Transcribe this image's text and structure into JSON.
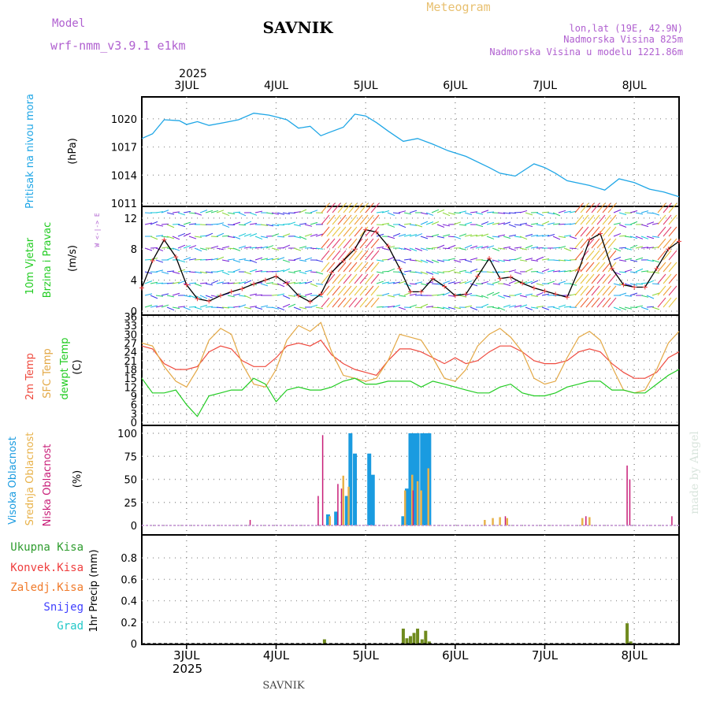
{
  "header": {
    "model_label": "Model",
    "model_name": "wrf-nmm_v3.9.1 e1km",
    "station": "SAVNIK",
    "product": "Meteogram",
    "lonlat": "lon,lat (19E, 42.9N)",
    "elevation": "Nadmorska Visina 825m",
    "model_elevation": "Nadmorska Visina u modelu 1221.86m",
    "footer_station": "SAVNIK",
    "credit": "made by Angel"
  },
  "time_axis": {
    "year": "2025",
    "days": [
      "3JUL",
      "4JUL",
      "5JUL",
      "6JUL",
      "7JUL",
      "8JUL"
    ],
    "start_day": 2.5,
    "end_day": 8.5
  },
  "colors": {
    "pressure": "#1ea6e6",
    "temp2m": "#ef4a3e",
    "sfc_temp": "#e3a845",
    "dewpoint": "#22cc22",
    "high_cloud": "#1a9be0",
    "mid_cloud": "#e8b24a",
    "low_cloud": "#c81e78",
    "total_precip": "#2e9c2e",
    "conv_precip": "#ef3e3e",
    "freezing": "#f07a2a",
    "snow": "#4040ff",
    "hail": "#22c8c8",
    "wind_speed": "#000000",
    "gust": "#ef3e3e"
  },
  "chart_data": [
    {
      "type": "line",
      "panel": "pressure",
      "labels": [
        "Pritisak na nivou mora",
        "(hPa)"
      ],
      "ylim": [
        1011,
        1022
      ],
      "yticks": [
        1011,
        1014,
        1017,
        1020
      ],
      "series": [
        {
          "x": [
            2.5,
            2.62,
            2.75,
            2.92,
            3.0,
            3.12,
            3.25,
            3.42,
            3.58,
            3.75,
            3.92,
            4.0,
            4.12,
            4.25,
            4.38,
            4.5,
            4.58,
            4.75,
            4.88,
            5.0,
            5.12,
            5.25,
            5.42,
            5.58,
            5.75,
            5.92,
            6.12,
            6.38,
            6.5,
            6.67,
            6.88,
            7.0,
            7.12,
            7.25,
            7.5,
            7.67,
            7.83,
            8.0,
            8.17,
            8.33,
            8.5
          ],
          "y": [
            1017.9,
            1018.4,
            1019.9,
            1019.8,
            1019.4,
            1019.7,
            1019.3,
            1019.6,
            1019.9,
            1020.6,
            1020.4,
            1020.2,
            1019.9,
            1019.0,
            1019.2,
            1018.2,
            1018.5,
            1019.1,
            1020.5,
            1020.3,
            1019.6,
            1018.7,
            1017.6,
            1017.9,
            1017.3,
            1016.6,
            1016.0,
            1014.8,
            1014.2,
            1013.9,
            1015.2,
            1014.8,
            1014.2,
            1013.4,
            1012.9,
            1012.4,
            1013.6,
            1013.2,
            1012.5,
            1012.2,
            1011.7
          ]
        }
      ]
    },
    {
      "type": "line",
      "panel": "wind",
      "labels": [
        "10m Vjetar",
        "Brzina i Pravac",
        "(m/s)"
      ],
      "legend_compass": "W <-|-> E",
      "ylim": [
        0,
        13
      ],
      "yticks": [
        0,
        4,
        8,
        12
      ],
      "series": [
        {
          "x": [
            2.5,
            2.62,
            2.75,
            2.88,
            3.0,
            3.12,
            3.25,
            3.38,
            3.5,
            3.62,
            3.75,
            3.88,
            4.0,
            4.12,
            4.25,
            4.38,
            4.5,
            4.62,
            4.75,
            4.88,
            5.0,
            5.12,
            5.25,
            5.38,
            5.5,
            5.62,
            5.75,
            5.88,
            6.0,
            6.12,
            6.25,
            6.38,
            6.5,
            6.62,
            6.75,
            6.88,
            7.0,
            7.12,
            7.25,
            7.38,
            7.5,
            7.62,
            7.75,
            7.88,
            8.0,
            8.12,
            8.25,
            8.38,
            8.5
          ],
          "y": [
            3.0,
            6.5,
            9.2,
            7.0,
            3.4,
            1.6,
            1.3,
            2.0,
            2.5,
            2.9,
            3.5,
            4.0,
            4.5,
            3.6,
            2.0,
            1.2,
            2.2,
            5.0,
            6.5,
            8.0,
            10.5,
            10.2,
            8.4,
            5.5,
            2.5,
            2.5,
            4.2,
            3.2,
            2.0,
            2.2,
            4.5,
            6.8,
            4.2,
            4.4,
            3.6,
            3.0,
            2.6,
            2.2,
            1.8,
            5.3,
            9.2,
            10.0,
            5.5,
            3.4,
            3.1,
            3.1,
            5.5,
            8.0,
            9.0
          ]
        }
      ]
    },
    {
      "type": "line",
      "panel": "temperature",
      "labels": [
        "2m Temp",
        "SFC Temp",
        "dewpt Temp",
        "(C)"
      ],
      "ylim": [
        0,
        36
      ],
      "yticks": [
        0,
        3,
        6,
        9,
        12,
        15,
        18,
        21,
        24,
        27,
        30,
        33,
        36
      ],
      "series": [
        {
          "name": "2m Temp",
          "x": [
            2.5,
            2.62,
            2.75,
            2.88,
            3.0,
            3.12,
            3.25,
            3.38,
            3.5,
            3.62,
            3.75,
            3.88,
            4.0,
            4.12,
            4.25,
            4.38,
            4.5,
            4.62,
            4.75,
            4.88,
            5.0,
            5.12,
            5.25,
            5.38,
            5.5,
            5.62,
            5.75,
            5.88,
            6.0,
            6.12,
            6.25,
            6.38,
            6.5,
            6.62,
            6.75,
            6.88,
            7.0,
            7.12,
            7.25,
            7.38,
            7.5,
            7.62,
            7.75,
            7.88,
            8.0,
            8.12,
            8.25,
            8.38,
            8.5
          ],
          "y": [
            26,
            25,
            20,
            18,
            18,
            19,
            24,
            26,
            25,
            21,
            19,
            19,
            22,
            26,
            27,
            26,
            28,
            23,
            20,
            18,
            17,
            16,
            21,
            25,
            25,
            24,
            22,
            20,
            22,
            20,
            21,
            24,
            26,
            26,
            24,
            21,
            20,
            20,
            21,
            24,
            25,
            24,
            20,
            17,
            15,
            15,
            17,
            22,
            24
          ]
        },
        {
          "name": "SFC Temp",
          "x": [
            2.5,
            2.62,
            2.75,
            2.88,
            3.0,
            3.12,
            3.25,
            3.38,
            3.5,
            3.62,
            3.75,
            3.88,
            4.0,
            4.12,
            4.25,
            4.38,
            4.5,
            4.62,
            4.75,
            4.88,
            5.0,
            5.12,
            5.25,
            5.38,
            5.5,
            5.62,
            5.75,
            5.88,
            6.0,
            6.12,
            6.25,
            6.38,
            6.5,
            6.62,
            6.75,
            6.88,
            7.0,
            7.12,
            7.25,
            7.38,
            7.5,
            7.62,
            7.75,
            7.88,
            8.0,
            8.12,
            8.25,
            8.38,
            8.5
          ],
          "y": [
            27,
            26,
            19,
            14,
            12,
            18,
            28,
            32,
            30,
            20,
            13,
            12,
            18,
            28,
            33,
            31,
            34,
            24,
            16,
            15,
            14,
            15,
            21,
            30,
            29,
            28,
            22,
            15,
            14,
            18,
            26,
            30,
            32,
            29,
            24,
            15,
            13,
            14,
            22,
            29,
            31,
            28,
            19,
            11,
            10,
            11,
            18,
            27,
            31
          ]
        },
        {
          "name": "dewpt Temp",
          "x": [
            2.5,
            2.62,
            2.75,
            2.88,
            3.0,
            3.12,
            3.25,
            3.38,
            3.5,
            3.62,
            3.75,
            3.88,
            4.0,
            4.12,
            4.25,
            4.38,
            4.5,
            4.62,
            4.75,
            4.88,
            5.0,
            5.12,
            5.25,
            5.38,
            5.5,
            5.62,
            5.75,
            5.88,
            6.0,
            6.12,
            6.25,
            6.38,
            6.5,
            6.62,
            6.75,
            6.88,
            7.0,
            7.12,
            7.25,
            7.38,
            7.5,
            7.62,
            7.75,
            7.88,
            8.0,
            8.12,
            8.25,
            8.38,
            8.5
          ],
          "y": [
            15,
            10,
            10,
            11,
            6,
            2,
            9,
            10,
            11,
            11,
            15,
            13,
            7,
            11,
            12,
            11,
            11,
            12,
            14,
            15,
            13,
            13,
            14,
            14,
            14,
            12,
            14,
            13,
            12,
            11,
            10,
            10,
            12,
            13,
            10,
            9,
            9,
            10,
            12,
            13,
            14,
            14,
            11,
            11,
            10,
            10,
            13,
            16,
            18
          ]
        }
      ]
    },
    {
      "type": "bar",
      "panel": "clouds",
      "labels": [
        "Visoka Oblacnost",
        "Srednja Oblacnost",
        "Niska Oblacnost",
        "(%)"
      ],
      "ylim": [
        0,
        100
      ],
      "yticks": [
        0,
        25,
        50,
        75,
        100
      ],
      "series": [
        {
          "name": "Visoka Oblacnost",
          "x": [
            4.58,
            4.67,
            4.79,
            4.83,
            4.88,
            5.04,
            5.08,
            5.42,
            5.46,
            5.5,
            5.54,
            5.58,
            5.63,
            5.67,
            5.71
          ],
          "values": [
            12,
            15,
            32,
            100,
            78,
            78,
            55,
            10,
            40,
            100,
            100,
            100,
            100,
            100,
            100
          ]
        },
        {
          "name": "Srednja Oblacnost",
          "x": [
            4.6,
            4.75,
            4.81,
            5.44,
            5.52,
            5.58,
            5.62,
            5.7,
            6.33,
            6.42,
            6.5,
            6.58,
            7.42,
            7.5
          ],
          "values": [
            10,
            54,
            42,
            38,
            55,
            48,
            38,
            62,
            6,
            8,
            9,
            8,
            8,
            9
          ]
        },
        {
          "name": "Niska Oblacnost",
          "x": [
            3.71,
            4.47,
            4.52,
            4.69,
            4.73,
            5.53,
            6.56,
            7.46,
            7.92,
            7.95,
            8.42
          ],
          "values": [
            6,
            32,
            98,
            45,
            40,
            38,
            10,
            10,
            65,
            50,
            10
          ]
        }
      ]
    },
    {
      "type": "bar",
      "panel": "precipitation",
      "labels": [
        "Ukupna Kisa",
        "Konvek.Kisa",
        "Zaledj.Kisa",
        "Snijeg",
        "Grad",
        "1hr Precip (mm)"
      ],
      "ylim": [
        0,
        1.0
      ],
      "yticks": [
        0,
        0.2,
        0.4,
        0.6,
        0.8
      ],
      "series": [
        {
          "name": "Ukupna Kisa",
          "x": [
            4.54,
            5.42,
            5.46,
            5.5,
            5.54,
            5.58,
            5.63,
            5.67,
            5.71,
            7.92,
            7.96
          ],
          "values": [
            0.04,
            0.14,
            0.05,
            0.07,
            0.1,
            0.14,
            0.04,
            0.12,
            0.02,
            0.19,
            0.02
          ]
        }
      ]
    }
  ]
}
